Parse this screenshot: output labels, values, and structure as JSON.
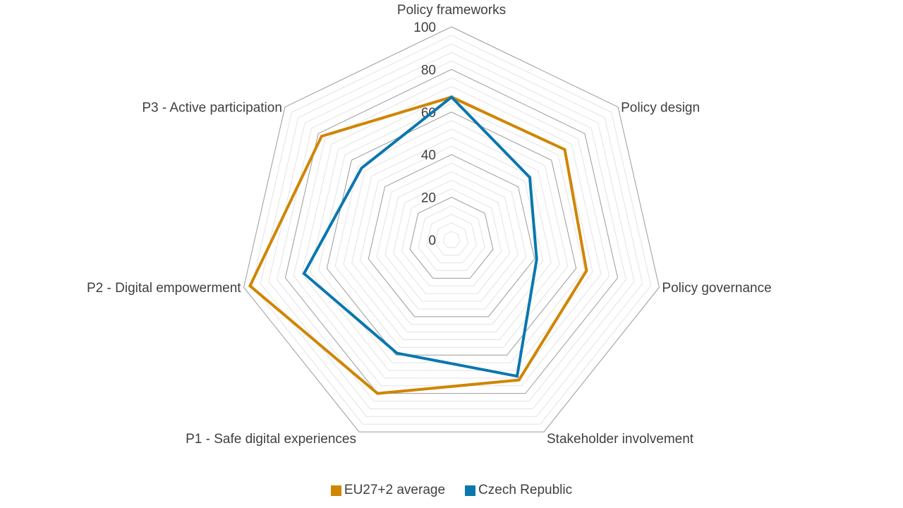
{
  "chart_data": {
    "type": "radar",
    "title": "",
    "axes": [
      "Policy frameworks",
      "Policy design",
      "Policy governance",
      "Stakeholder involvement",
      "P1 - Safe digital experiences",
      "P2 - Digital empowerment",
      "P3 - Active participation"
    ],
    "r_range": [
      0,
      100
    ],
    "r_ticks": [
      0,
      20,
      40,
      60,
      80,
      100
    ],
    "minor_gridlines_per_major": 4,
    "series": [
      {
        "name": "EU27+2 average",
        "color": "#D08500",
        "values": [
          67,
          68,
          65,
          73,
          80,
          97,
          78
        ]
      },
      {
        "name": "Czech Republic",
        "color": "#0A77AF",
        "values": [
          67,
          47,
          41,
          71,
          59,
          71,
          54
        ]
      }
    ],
    "legend_position": "bottom"
  }
}
